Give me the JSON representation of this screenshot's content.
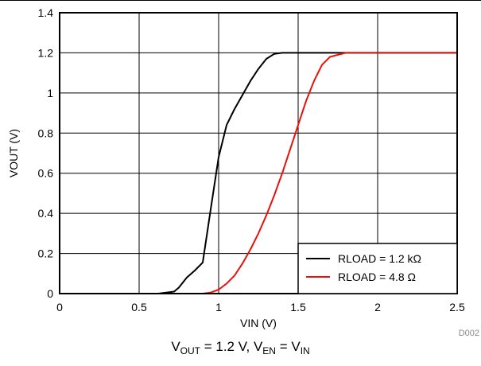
{
  "chart_data": {
    "type": "line",
    "xlabel": "VIN (V)",
    "ylabel": "VOUT (V)",
    "xlim": [
      0,
      2.5
    ],
    "ylim": [
      0,
      1.4
    ],
    "x_ticks": [
      "0",
      "0.5",
      "1",
      "1.5",
      "2",
      "2.5"
    ],
    "y_ticks": [
      "0",
      "0.2",
      "0.4",
      "0.6",
      "0.8",
      "1",
      "1.2",
      "1.4"
    ],
    "grid": true,
    "legend_position": "bottom-right",
    "series": [
      {
        "name": "RLOAD = 1.2 kΩ",
        "color": "#000000",
        "x": [
          0.62,
          0.72,
          0.75,
          0.8,
          0.85,
          0.9,
          0.95,
          1.0,
          1.05,
          1.1,
          1.15,
          1.2,
          1.25,
          1.3,
          1.35,
          1.4,
          1.5,
          1.6,
          1.7,
          1.8,
          2.0,
          2.5
        ],
        "y": [
          0.0,
          0.01,
          0.03,
          0.08,
          0.115,
          0.155,
          0.42,
          0.68,
          0.84,
          0.92,
          0.99,
          1.06,
          1.12,
          1.17,
          1.195,
          1.2,
          1.2,
          1.2,
          1.2,
          1.2,
          1.2,
          1.2
        ]
      },
      {
        "name": "RLOAD = 4.8 Ω",
        "color": "#e8120c",
        "x": [
          0.62,
          0.9,
          0.95,
          1.0,
          1.05,
          1.1,
          1.15,
          1.2,
          1.25,
          1.3,
          1.35,
          1.4,
          1.45,
          1.5,
          1.55,
          1.6,
          1.65,
          1.7,
          1.75,
          1.8,
          2.0,
          2.5
        ],
        "y": [
          0.0,
          0.0,
          0.005,
          0.02,
          0.05,
          0.09,
          0.15,
          0.22,
          0.3,
          0.39,
          0.49,
          0.6,
          0.72,
          0.84,
          0.96,
          1.06,
          1.14,
          1.18,
          1.19,
          1.2,
          1.2,
          1.2
        ]
      }
    ]
  },
  "figure_id": "D002",
  "caption": {
    "v": "V",
    "out_sub": "OUT",
    "mid": " = 1.2 V, V",
    "en_sub": "EN",
    "eq": " = V",
    "in_sub": "IN"
  }
}
